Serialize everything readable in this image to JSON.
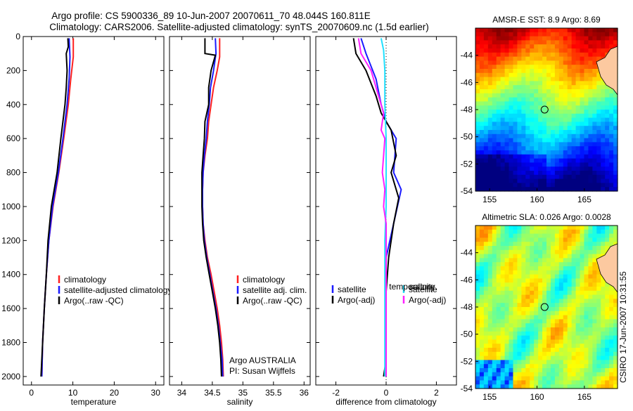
{
  "header": {
    "line1": "Argo profile: CS 5900336_89 10-Jun-2007 20070611_70 48.044S 160.811E",
    "line2": "Climatology: CARS2006. Satellite-adjusted climatology: synTS_20070609.nc (1.5d earlier)"
  },
  "colors": {
    "clim": "#ff2020",
    "sat": "#1a1aff",
    "argo": "#000000",
    "sat_diff": "#20e0ff",
    "argo_diff": "#ff20ff"
  },
  "chart_data": [
    {
      "type": "line",
      "id": "temperature",
      "xlabel": "temperature",
      "ylim": [
        0,
        2050
      ],
      "xlim": [
        -2,
        32
      ],
      "xticks": [
        0,
        10,
        20,
        30
      ],
      "yticks": [
        0,
        200,
        400,
        600,
        800,
        1000,
        1200,
        1400,
        1600,
        1800,
        2000
      ],
      "legend": [
        "climatology",
        "satellite-adjusted climatology",
        "Argo(..raw -QC)"
      ],
      "series": [
        {
          "name": "climatology",
          "color": "clim",
          "points": [
            [
              10.1,
              10
            ],
            [
              10.1,
              120
            ],
            [
              9.5,
              250
            ],
            [
              8.9,
              400
            ],
            [
              7.8,
              600
            ],
            [
              6.6,
              800
            ],
            [
              5.2,
              1000
            ],
            [
              4.2,
              1200
            ],
            [
              3.6,
              1400
            ],
            [
              3.1,
              1600
            ],
            [
              2.7,
              1800
            ],
            [
              2.5,
              2000
            ]
          ]
        },
        {
          "name": "satellite-adjusted climatology",
          "color": "sat",
          "points": [
            [
              9.1,
              10
            ],
            [
              9.3,
              120
            ],
            [
              9.1,
              250
            ],
            [
              8.6,
              400
            ],
            [
              7.6,
              600
            ],
            [
              6.5,
              800
            ],
            [
              5.1,
              1000
            ],
            [
              4.2,
              1200
            ],
            [
              3.6,
              1400
            ],
            [
              3.1,
              1600
            ],
            [
              2.7,
              1800
            ],
            [
              2.5,
              2000
            ]
          ]
        },
        {
          "name": "Argo(..raw -QC)",
          "color": "argo",
          "points": [
            [
              8.8,
              10
            ],
            [
              8.9,
              60
            ],
            [
              8.4,
              100
            ],
            [
              8.6,
              200
            ],
            [
              8.4,
              300
            ],
            [
              8.1,
              400
            ],
            [
              7.1,
              600
            ],
            [
              6.2,
              800
            ],
            [
              4.8,
              1000
            ],
            [
              4.0,
              1200
            ],
            [
              3.6,
              1400
            ],
            [
              3.1,
              1600
            ],
            [
              2.7,
              1800
            ],
            [
              2.3,
              2000
            ]
          ]
        }
      ]
    },
    {
      "type": "line",
      "id": "salinity",
      "xlabel": "salinity",
      "ylim": [
        0,
        2050
      ],
      "xlim": [
        33.8,
        36.1
      ],
      "xticks": [
        34,
        34.5,
        35,
        35.5,
        36
      ],
      "yticks": [
        0,
        200,
        400,
        600,
        800,
        1000,
        1200,
        1400,
        1600,
        1800,
        2000
      ],
      "legend": [
        "climatology",
        "satellite adj. clim.",
        "Argo(..raw -QC)"
      ],
      "annotation": [
        "Argo AUSTRALIA",
        "PI: Susan Wijffels"
      ],
      "series": [
        {
          "name": "climatology",
          "color": "clim",
          "points": [
            [
              34.62,
              10
            ],
            [
              34.62,
              120
            ],
            [
              34.58,
              200
            ],
            [
              34.52,
              300
            ],
            [
              34.48,
              400
            ],
            [
              34.44,
              500
            ],
            [
              34.42,
              600
            ],
            [
              34.38,
              700
            ],
            [
              34.35,
              800
            ],
            [
              34.34,
              900
            ],
            [
              34.34,
              1000
            ],
            [
              34.35,
              1100
            ],
            [
              34.38,
              1200
            ],
            [
              34.42,
              1300
            ],
            [
              34.48,
              1400
            ],
            [
              34.53,
              1500
            ],
            [
              34.58,
              1600
            ],
            [
              34.62,
              1700
            ],
            [
              34.65,
              1800
            ],
            [
              34.67,
              1900
            ],
            [
              34.68,
              2000
            ]
          ]
        },
        {
          "name": "satellite adj. clim.",
          "color": "sat",
          "points": [
            [
              34.55,
              10
            ],
            [
              34.56,
              100
            ],
            [
              34.52,
              200
            ],
            [
              34.47,
              300
            ],
            [
              34.45,
              400
            ],
            [
              34.42,
              500
            ],
            [
              34.4,
              600
            ],
            [
              34.37,
              700
            ],
            [
              34.35,
              800
            ],
            [
              34.34,
              900
            ],
            [
              34.34,
              1000
            ],
            [
              34.35,
              1100
            ],
            [
              34.37,
              1200
            ],
            [
              34.41,
              1300
            ],
            [
              34.46,
              1400
            ],
            [
              34.51,
              1500
            ],
            [
              34.56,
              1600
            ],
            [
              34.6,
              1700
            ],
            [
              34.63,
              1800
            ],
            [
              34.66,
              1900
            ],
            [
              34.67,
              2000
            ]
          ]
        },
        {
          "name": "Argo(..raw -QC)",
          "color": "argo",
          "points": [
            [
              34.38,
              10
            ],
            [
              34.38,
              100
            ],
            [
              34.55,
              110
            ],
            [
              34.48,
              200
            ],
            [
              34.44,
              300
            ],
            [
              34.44,
              400
            ],
            [
              34.38,
              500
            ],
            [
              34.37,
              600
            ],
            [
              34.35,
              700
            ],
            [
              34.33,
              800
            ],
            [
              34.33,
              900
            ],
            [
              34.33,
              1000
            ],
            [
              34.34,
              1100
            ],
            [
              34.36,
              1200
            ],
            [
              34.4,
              1300
            ],
            [
              34.45,
              1400
            ],
            [
              34.5,
              1500
            ],
            [
              34.55,
              1600
            ],
            [
              34.59,
              1700
            ],
            [
              34.62,
              1800
            ],
            [
              34.64,
              1900
            ],
            [
              34.65,
              2000
            ]
          ]
        }
      ]
    },
    {
      "type": "line",
      "id": "difference",
      "xlabel": "difference from climatology",
      "ylim": [
        0,
        2050
      ],
      "xlim": [
        -2.8,
        2.8
      ],
      "xticks": [
        -2,
        0,
        2
      ],
      "yticks": [
        0,
        200,
        400,
        600,
        800,
        1000,
        1200,
        1400,
        1600,
        1800,
        2000
      ],
      "legend_temp_title": "temperature",
      "legend_sal_title": "salinity",
      "legend": [
        "satellite",
        "Argo(-adj)",
        "satellite",
        "Argo(-adj)"
      ],
      "series": [
        {
          "name": "temperature satellite",
          "color": "sat",
          "points": [
            [
              -1.0,
              10
            ],
            [
              -0.8,
              100
            ],
            [
              -0.4,
              250
            ],
            [
              -0.2,
              400
            ],
            [
              0.0,
              500
            ],
            [
              0.4,
              600
            ],
            [
              0.3,
              800
            ],
            [
              0.6,
              900
            ],
            [
              0.3,
              1100
            ],
            [
              0.0,
              1300
            ],
            [
              0.0,
              1500
            ],
            [
              0.0,
              1700
            ],
            [
              0.0,
              1900
            ],
            [
              0.0,
              2000
            ]
          ]
        },
        {
          "name": "temperature Argo(-adj)",
          "color": "argo",
          "points": [
            [
              -1.3,
              10
            ],
            [
              -1.2,
              100
            ],
            [
              -0.8,
              200
            ],
            [
              -0.4,
              350
            ],
            [
              -0.2,
              450
            ],
            [
              0.2,
              550
            ],
            [
              0.4,
              700
            ],
            [
              0.2,
              800
            ],
            [
              0.5,
              950
            ],
            [
              0.3,
              1100
            ],
            [
              0.1,
              1300
            ],
            [
              0.0,
              1500
            ],
            [
              0.0,
              1700
            ],
            [
              0.0,
              1900
            ],
            [
              -0.1,
              2000
            ]
          ]
        },
        {
          "name": "salinity satellite",
          "color": "sat_diff",
          "points": [
            [
              -0.2,
              10
            ],
            [
              -0.1,
              80
            ],
            [
              -0.05,
              200
            ],
            [
              -0.05,
              400
            ],
            [
              0.0,
              600
            ],
            [
              0.0,
              800
            ],
            [
              0.0,
              1000
            ],
            [
              -0.05,
              1200
            ],
            [
              -0.05,
              1400
            ],
            [
              -0.05,
              1600
            ],
            [
              -0.05,
              1800
            ],
            [
              -0.05,
              2000
            ]
          ]
        },
        {
          "name": "salinity Argo(-adj)",
          "color": "argo_diff",
          "points": [
            [
              -1.1,
              10
            ],
            [
              -1.0,
              100
            ],
            [
              -0.6,
              200
            ],
            [
              -0.4,
              300
            ],
            [
              -0.1,
              450
            ],
            [
              -0.2,
              550
            ],
            [
              -0.05,
              600
            ],
            [
              -0.1,
              700
            ],
            [
              -0.15,
              800
            ],
            [
              -0.05,
              900
            ],
            [
              -0.1,
              1000
            ],
            [
              0.0,
              1100
            ],
            [
              0.0,
              1300
            ],
            [
              0.0,
              1500
            ],
            [
              0.0,
              1700
            ],
            [
              0.0,
              1900
            ],
            [
              0.0,
              2000
            ]
          ]
        }
      ]
    },
    {
      "type": "heatmap",
      "id": "sst_map",
      "title": "AMSR-E SST: 8.9 Argo: 8.69",
      "xlim": [
        153.5,
        168.5
      ],
      "ylim": [
        -54,
        -42
      ],
      "xticks": [
        155,
        160,
        165
      ],
      "yticks": [
        -44,
        -46,
        -48,
        -50,
        -52,
        -54
      ],
      "marker": {
        "lon": 160.8,
        "lat": -48.0
      }
    },
    {
      "type": "heatmap",
      "id": "sla_map",
      "title": "Altimetric SLA: 0.026 Argo: 0.0028",
      "xlim": [
        153.5,
        168.5
      ],
      "ylim": [
        -54,
        -42
      ],
      "xticks": [
        155,
        160,
        165
      ],
      "yticks": [
        -44,
        -46,
        -48,
        -50,
        -52,
        -54
      ],
      "marker": {
        "lon": 160.8,
        "lat": -48.0
      }
    }
  ],
  "footer_stamp": "CSIRO 17-Jun-2007 10:31:55"
}
